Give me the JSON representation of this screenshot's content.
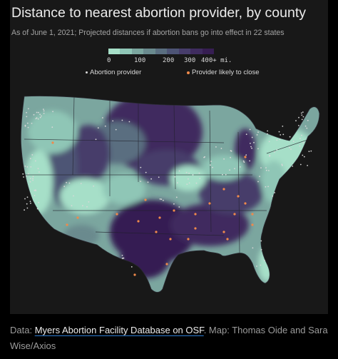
{
  "title": "Distance to nearest abortion provider, by county",
  "subtitle": "As of June 1, 2021; Projected distances if abortion bans go into effect in 22 states",
  "legend": {
    "ticks": [
      "0",
      "100",
      "200",
      "300",
      "400+ mi."
    ],
    "colors": [
      "#a6dfc8",
      "#8fc6b6",
      "#7ba69f",
      "#6a8a8e",
      "#5a6e80",
      "#4d5475",
      "#473d6b",
      "#3f2c5f",
      "#361e52"
    ],
    "keys": [
      {
        "label": "Abortion provider",
        "color": "#d8d8d8",
        "icon": "small-dot"
      },
      {
        "label": "Provider likely to close",
        "color": "#f08a4b",
        "icon": "orange-dot"
      }
    ]
  },
  "map": {
    "background": "#181818",
    "border_color": "#20202a"
  },
  "caption": {
    "prefix": "Data: ",
    "link_text": "Myers Abortion Facility Database on OSF",
    "suffix": ". Map: Thomas Oide and Sara Wise/Axios"
  }
}
